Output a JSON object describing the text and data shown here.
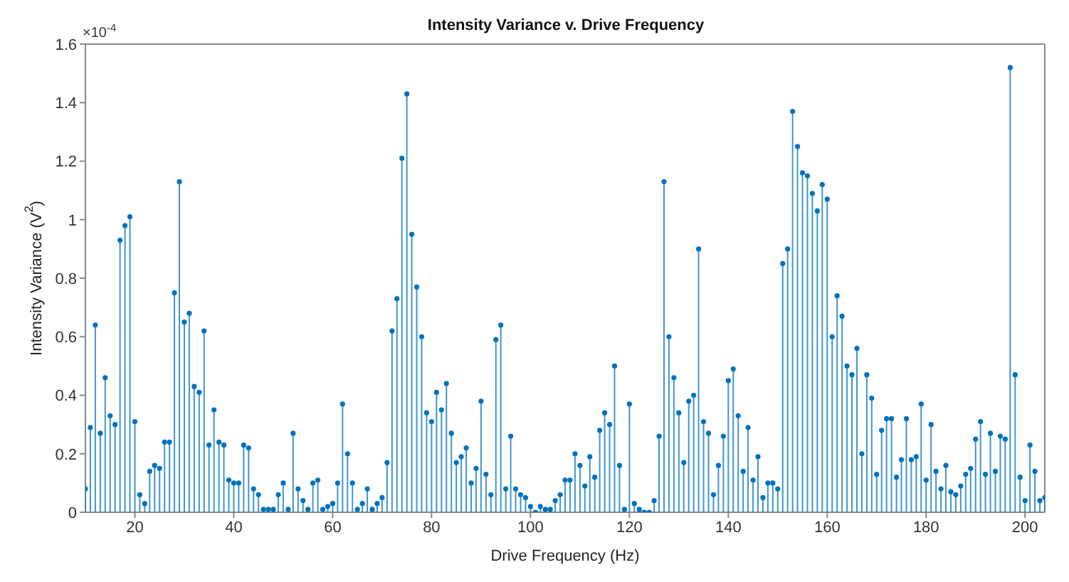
{
  "chart_data": {
    "type": "lollipop",
    "title": "Intensity Variance v. Drive Frequency",
    "xlabel": "Drive Frequency (Hz)",
    "ylabel": "Intensity Variance (V$^{2}$)",
    "annotations": [
      "×10$^{-4}$"
    ],
    "x": [
      10,
      11,
      12,
      13,
      14,
      15,
      16,
      17,
      18,
      19,
      20,
      21,
      22,
      23,
      24,
      25,
      26,
      27,
      28,
      29,
      30,
      31,
      32,
      33,
      34,
      35,
      36,
      37,
      38,
      39,
      40,
      41,
      42,
      43,
      44,
      45,
      46,
      47,
      48,
      49,
      50,
      51,
      52,
      53,
      54,
      55,
      56,
      57,
      58,
      59,
      60,
      61,
      62,
      63,
      64,
      65,
      66,
      67,
      68,
      69,
      70,
      71,
      72,
      73,
      74,
      75,
      76,
      77,
      78,
      79,
      80,
      81,
      82,
      83,
      84,
      85,
      86,
      87,
      88,
      89,
      90,
      91,
      92,
      93,
      94,
      95,
      96,
      97,
      98,
      99,
      100,
      101,
      102,
      103,
      104,
      105,
      106,
      107,
      108,
      109,
      110,
      111,
      112,
      113,
      114,
      115,
      116,
      117,
      118,
      119,
      120,
      121,
      122,
      123,
      124,
      125,
      126,
      127,
      128,
      129,
      130,
      131,
      132,
      133,
      134,
      135,
      136,
      137,
      138,
      139,
      140,
      141,
      142,
      143,
      144,
      145,
      146,
      147,
      148,
      149,
      150,
      151,
      152,
      153,
      154,
      155,
      156,
      157,
      158,
      159,
      160,
      161,
      162,
      163,
      164,
      165,
      166,
      167,
      168,
      169,
      170,
      171,
      172,
      173,
      174,
      175,
      176,
      177,
      178,
      179,
      180,
      181,
      182,
      183,
      184,
      185,
      186,
      187,
      188,
      189,
      190,
      191,
      192,
      193,
      194,
      195,
      196,
      197,
      198,
      199,
      200,
      201,
      202,
      203,
      204
    ],
    "series": [
      {
        "color": "#0072bd",
        "values": [
          0.08,
          0.29,
          0.64,
          0.27,
          0.46,
          0.33,
          0.3,
          0.93,
          0.98,
          1.01,
          0.31,
          0.06,
          0.03,
          0.14,
          0.16,
          0.15,
          0.24,
          0.24,
          0.75,
          1.13,
          0.65,
          0.68,
          0.43,
          0.41,
          0.62,
          0.23,
          0.35,
          0.24,
          0.23,
          0.11,
          0.1,
          0.1,
          0.23,
          0.22,
          0.08,
          0.06,
          0.01,
          0.01,
          0.01,
          0.06,
          0.1,
          0.01,
          0.27,
          0.08,
          0.04,
          0.01,
          0.1,
          0.11,
          0.01,
          0.02,
          0.03,
          0.1,
          0.37,
          0.2,
          0.1,
          0.01,
          0.03,
          0.08,
          0.01,
          0.03,
          0.05,
          0.17,
          0.62,
          0.73,
          1.21,
          1.43,
          0.95,
          0.77,
          0.6,
          0.34,
          0.31,
          0.41,
          0.35,
          0.44,
          0.27,
          0.17,
          0.19,
          0.22,
          0.1,
          0.15,
          0.38,
          0.13,
          0.06,
          0.59,
          0.64,
          0.08,
          0.26,
          0.08,
          0.06,
          0.05,
          0.02,
          0.0,
          0.02,
          0.01,
          0.01,
          0.04,
          0.06,
          0.11,
          0.11,
          0.2,
          0.16,
          0.09,
          0.19,
          0.12,
          0.28,
          0.34,
          0.3,
          0.5,
          0.16,
          0.01,
          0.37,
          0.03,
          0.01,
          0.0,
          0.0,
          0.04,
          0.26,
          1.13,
          0.6,
          0.46,
          0.34,
          0.17,
          0.38,
          0.4,
          0.9,
          0.31,
          0.27,
          0.06,
          0.16,
          0.26,
          0.45,
          0.49,
          0.33,
          0.14,
          0.29,
          0.11,
          0.19,
          0.05,
          0.1,
          0.1,
          0.08,
          0.85,
          0.9,
          1.37,
          1.25,
          1.16,
          1.15,
          1.09,
          1.03,
          1.12,
          1.07,
          0.6,
          0.74,
          0.67,
          0.5,
          0.47,
          0.56,
          0.2,
          0.47,
          0.39,
          0.13,
          0.28,
          0.32,
          0.32,
          0.12,
          0.18,
          0.32,
          0.18,
          0.19,
          0.37,
          0.11,
          0.3,
          0.14,
          0.08,
          0.16,
          0.07,
          0.06,
          0.09,
          0.13,
          0.15,
          0.25,
          0.31,
          0.13,
          0.27,
          0.14,
          0.26,
          0.25,
          1.52,
          0.47,
          0.12,
          0.04,
          0.23,
          0.14,
          0.04,
          0.05
        ]
      }
    ],
    "xlim": [
      10,
      204
    ],
    "xticks": [
      20,
      40,
      60,
      80,
      100,
      120,
      140,
      160,
      180,
      200
    ],
    "ylim": [
      0,
      1.6
    ],
    "yticks": [
      0,
      0.2,
      0.4,
      0.6,
      0.8,
      1,
      1.2,
      1.4,
      1.6
    ],
    "marker": "circle"
  }
}
